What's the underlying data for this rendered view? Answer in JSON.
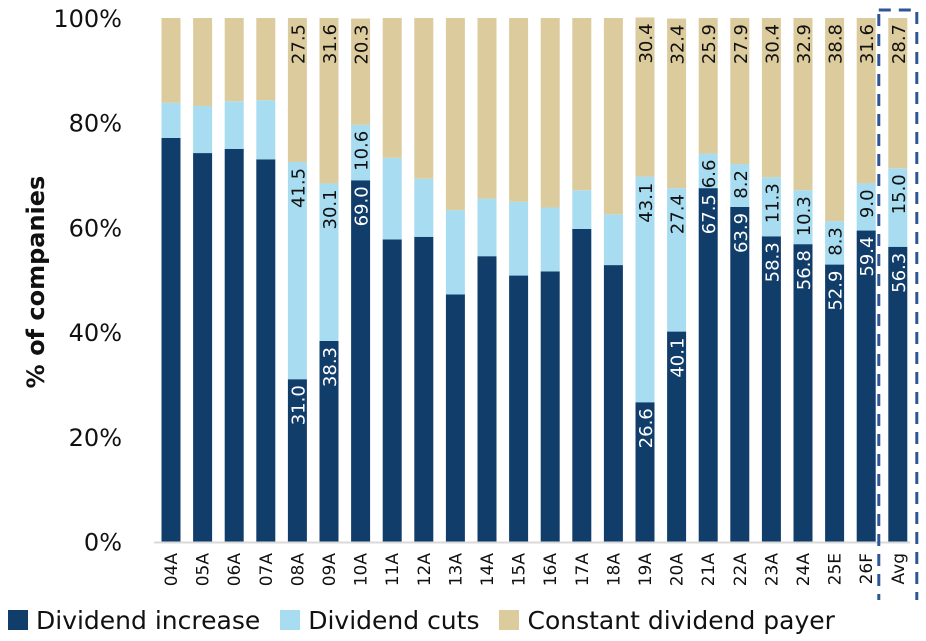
{
  "chart_data": {
    "type": "bar",
    "stacked": true,
    "title": "",
    "xlabel": "",
    "ylabel": "% of companies",
    "ylim": [
      0,
      100
    ],
    "yticks": [
      "0%",
      "20%",
      "40%",
      "60%",
      "80%",
      "100%"
    ],
    "categories": [
      "04A",
      "05A",
      "06A",
      "07A",
      "08A",
      "09A",
      "10A",
      "11A",
      "12A",
      "13A",
      "14A",
      "15A",
      "16A",
      "17A",
      "18A",
      "19A",
      "20A",
      "21A",
      "22A",
      "23A",
      "24A",
      "25E",
      "26F",
      "Avg"
    ],
    "series": [
      {
        "name": "Dividend increase",
        "color": "#113D6B",
        "label_color": "#ffffff",
        "values": [
          77.1,
          74.2,
          75.0,
          73.0,
          31.0,
          38.3,
          69.0,
          57.7,
          58.2,
          47.2,
          54.5,
          50.8,
          51.6,
          59.7,
          52.8,
          26.6,
          40.1,
          67.5,
          63.9,
          58.3,
          56.8,
          52.9,
          59.4,
          56.3
        ],
        "labels": [
          null,
          null,
          null,
          null,
          "31.0",
          "38.3",
          "69.0",
          null,
          null,
          null,
          null,
          null,
          null,
          null,
          null,
          "26.6",
          "40.1",
          "67.5",
          "63.9",
          "58.3",
          "56.8",
          "52.9",
          "59.4",
          "56.3"
        ]
      },
      {
        "name": "Dividend cuts",
        "color": "#A8DCF0",
        "label_color": "#111111",
        "values": [
          6.7,
          9.0,
          9.1,
          11.3,
          41.5,
          30.1,
          10.6,
          15.6,
          11.1,
          16.1,
          11.0,
          14.1,
          12.2,
          7.4,
          9.7,
          43.1,
          27.4,
          6.6,
          8.2,
          11.3,
          10.3,
          8.3,
          9.0,
          15.0
        ],
        "labels": [
          null,
          null,
          null,
          null,
          "41.5",
          "30.1",
          "10.6",
          null,
          null,
          null,
          null,
          null,
          null,
          null,
          null,
          "43.1",
          "27.4",
          "6.6",
          "8.2",
          "11.3",
          "10.3",
          "8.3",
          "9.0",
          "15.0"
        ]
      },
      {
        "name": "Constant dividend payer",
        "color": "#DCCB9C",
        "label_color": "#111111",
        "values": [
          16.2,
          16.8,
          15.9,
          15.7,
          27.5,
          31.6,
          20.3,
          26.7,
          30.7,
          36.7,
          34.5,
          35.1,
          36.2,
          32.9,
          37.5,
          30.4,
          32.4,
          25.9,
          27.9,
          30.4,
          32.9,
          38.8,
          31.6,
          28.7
        ],
        "labels": [
          null,
          null,
          null,
          null,
          "27.5",
          "31.6",
          "20.3",
          null,
          null,
          null,
          null,
          null,
          null,
          null,
          null,
          "30.4",
          "32.4",
          "25.9",
          "27.9",
          "30.4",
          "32.9",
          "38.8",
          "31.6",
          "28.7"
        ]
      }
    ],
    "highlight": {
      "category": "Avg",
      "style": "dashed box",
      "color": "#2F5597"
    },
    "legend": {
      "placement": "bottom"
    },
    "grid": false
  }
}
